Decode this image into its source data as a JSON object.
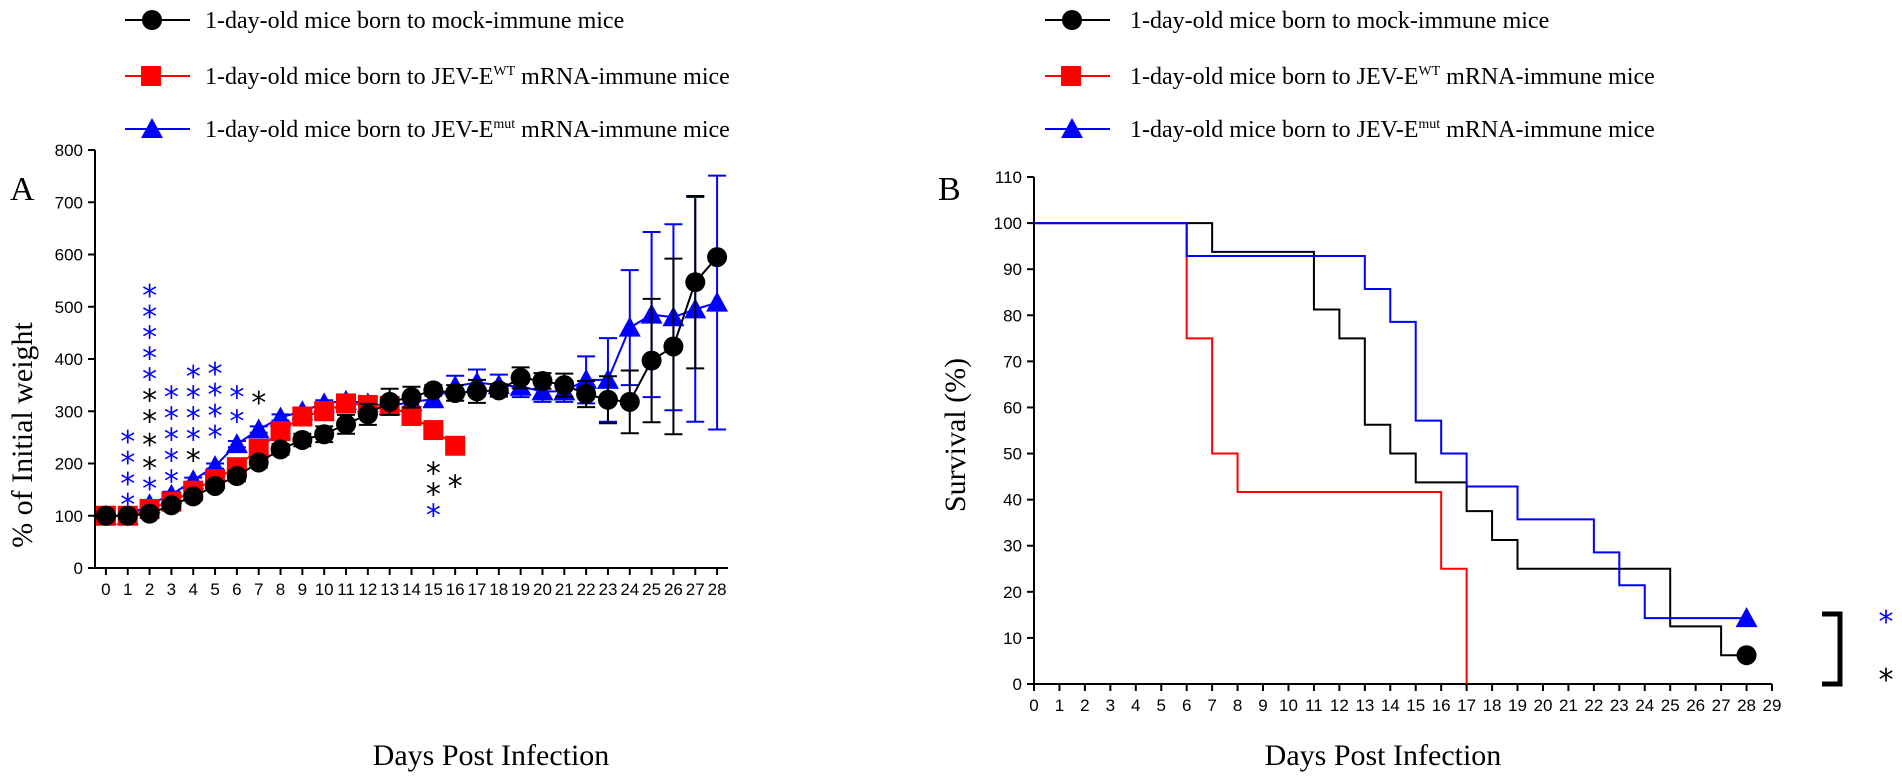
{
  "legend": {
    "mock": "1-day-old mice born to mock-immune mice",
    "wt_pre": "1-day-old mice born to JEV-E",
    "wt_sup": "WT",
    "wt_post": " mRNA-immune mice",
    "mut_pre": "1-day-old mice born to JEV-E",
    "mut_sup": "mut",
    "mut_post": " mRNA-immune mice"
  },
  "colors": {
    "mock": "#000000",
    "wt": "#ff0000",
    "mut": "#0000ff"
  },
  "chart_data": [
    {
      "panel": "A",
      "type": "line",
      "xlabel": "Days Post Infection",
      "ylabel": "% of Initial weight",
      "xlim": [
        -0.5,
        28.5
      ],
      "ylim": [
        0,
        800
      ],
      "xticks": [
        0,
        1,
        2,
        3,
        4,
        5,
        6,
        7,
        8,
        9,
        10,
        11,
        12,
        13,
        14,
        15,
        16,
        17,
        18,
        19,
        20,
        21,
        22,
        23,
        24,
        25,
        26,
        27,
        28
      ],
      "yticks": [
        0,
        100,
        200,
        300,
        400,
        500,
        600,
        700,
        800
      ],
      "series": [
        {
          "name": "mock",
          "marker": "circle",
          "x": [
            0,
            1,
            2,
            3,
            4,
            5,
            6,
            7,
            8,
            9,
            10,
            11,
            12,
            13,
            14,
            15,
            16,
            17,
            18,
            19,
            20,
            21,
            22,
            23,
            24,
            25,
            26,
            27,
            28
          ],
          "y": [
            100,
            100,
            104,
            120,
            137,
            157,
            176,
            202,
            227,
            245,
            256,
            275,
            294,
            318,
            327,
            340,
            335,
            338,
            340,
            364,
            358,
            350,
            333,
            322,
            318,
            397,
            424,
            547,
            595
          ],
          "err": [
            0,
            5,
            8,
            8,
            8,
            8,
            10,
            10,
            10,
            12,
            15,
            18,
            20,
            25,
            20,
            10,
            15,
            22,
            12,
            20,
            15,
            22,
            25,
            45,
            60,
            118,
            168,
            165,
            0
          ]
        },
        {
          "name": "wt",
          "marker": "square",
          "x": [
            0,
            1,
            2,
            3,
            4,
            5,
            6,
            7,
            8,
            9,
            10,
            11,
            12,
            13,
            14,
            15,
            16
          ],
          "y": [
            100,
            100,
            113,
            127,
            148,
            170,
            193,
            228,
            262,
            290,
            300,
            315,
            312,
            310,
            291,
            264,
            234
          ],
          "err": [
            0,
            3,
            4,
            5,
            5,
            5,
            5,
            5,
            5,
            5,
            5,
            5,
            5,
            5,
            5,
            5,
            5
          ]
        },
        {
          "name": "mut",
          "marker": "triangle",
          "x": [
            0,
            1,
            2,
            3,
            4,
            5,
            6,
            7,
            8,
            9,
            10,
            11,
            12,
            13,
            14,
            15,
            16,
            17,
            18,
            19,
            20,
            21,
            22,
            23,
            24,
            25,
            26,
            27,
            28
          ],
          "y": [
            100,
            100,
            122,
            140,
            168,
            195,
            237,
            265,
            288,
            300,
            315,
            320,
            315,
            310,
            318,
            323,
            348,
            355,
            350,
            347,
            338,
            338,
            360,
            360,
            460,
            485,
            480,
            495,
            508
          ],
          "err": [
            0,
            3,
            5,
            6,
            5,
            5,
            6,
            6,
            6,
            6,
            6,
            6,
            6,
            6,
            10,
            10,
            20,
            25,
            20,
            20,
            20,
            20,
            45,
            80,
            110,
            158,
            178,
            215,
            243
          ]
        }
      ],
      "annotations": [
        {
          "x": 1,
          "y": 260,
          "text": "*",
          "color": "blue"
        },
        {
          "x": 1,
          "y": 220,
          "text": "*",
          "color": "blue"
        },
        {
          "x": 1,
          "y": 180,
          "text": "*",
          "color": "blue"
        },
        {
          "x": 1,
          "y": 140,
          "text": "*",
          "color": "blue"
        },
        {
          "x": 2,
          "y": 540,
          "text": "*",
          "color": "blue"
        },
        {
          "x": 2,
          "y": 500,
          "text": "*",
          "color": "blue"
        },
        {
          "x": 2,
          "y": 460,
          "text": "*",
          "color": "blue"
        },
        {
          "x": 2,
          "y": 420,
          "text": "*",
          "color": "blue"
        },
        {
          "x": 2,
          "y": 380,
          "text": "*",
          "color": "blue"
        },
        {
          "x": 2,
          "y": 340,
          "text": "*",
          "color": "black"
        },
        {
          "x": 2,
          "y": 300,
          "text": "*",
          "color": "black"
        },
        {
          "x": 2,
          "y": 255,
          "text": "*",
          "color": "black"
        },
        {
          "x": 2,
          "y": 210,
          "text": "*",
          "color": "black"
        },
        {
          "x": 2,
          "y": 170,
          "text": "*",
          "color": "blue"
        },
        {
          "x": 3,
          "y": 345,
          "text": "*",
          "color": "blue"
        },
        {
          "x": 3,
          "y": 305,
          "text": "*",
          "color": "blue"
        },
        {
          "x": 3,
          "y": 265,
          "text": "*",
          "color": "blue"
        },
        {
          "x": 3,
          "y": 225,
          "text": "*",
          "color": "blue"
        },
        {
          "x": 3,
          "y": 185,
          "text": "*",
          "color": "blue"
        },
        {
          "x": 4,
          "y": 385,
          "text": "*",
          "color": "blue"
        },
        {
          "x": 4,
          "y": 345,
          "text": "*",
          "color": "blue"
        },
        {
          "x": 4,
          "y": 305,
          "text": "*",
          "color": "blue"
        },
        {
          "x": 4,
          "y": 265,
          "text": "*",
          "color": "blue"
        },
        {
          "x": 4,
          "y": 225,
          "text": "*",
          "color": "black"
        },
        {
          "x": 5,
          "y": 390,
          "text": "*",
          "color": "blue"
        },
        {
          "x": 5,
          "y": 350,
          "text": "*",
          "color": "blue"
        },
        {
          "x": 5,
          "y": 310,
          "text": "*",
          "color": "blue"
        },
        {
          "x": 5,
          "y": 270,
          "text": "*",
          "color": "blue"
        },
        {
          "x": 6,
          "y": 345,
          "text": "*",
          "color": "blue"
        },
        {
          "x": 6,
          "y": 300,
          "text": "*",
          "color": "blue"
        },
        {
          "x": 7,
          "y": 335,
          "text": "*",
          "color": "black"
        },
        {
          "x": 15,
          "y": 200,
          "text": "*",
          "color": "black"
        },
        {
          "x": 15,
          "y": 160,
          "text": "*",
          "color": "black"
        },
        {
          "x": 15,
          "y": 120,
          "text": "*",
          "color": "blue"
        },
        {
          "x": 16,
          "y": 175,
          "text": "*",
          "color": "black"
        }
      ]
    },
    {
      "panel": "B",
      "type": "line",
      "subtype": "step",
      "xlabel": "Days Post Infection",
      "ylabel": "Survival (%)",
      "xlim": [
        0,
        29
      ],
      "ylim": [
        0,
        110
      ],
      "xticks": [
        0,
        1,
        2,
        3,
        4,
        5,
        6,
        7,
        8,
        9,
        10,
        11,
        12,
        13,
        14,
        15,
        16,
        17,
        18,
        19,
        20,
        21,
        22,
        23,
        24,
        25,
        26,
        27,
        28,
        29
      ],
      "yticks": [
        0,
        10,
        20,
        30,
        40,
        50,
        60,
        70,
        80,
        90,
        100,
        110
      ],
      "series": [
        {
          "name": "mock",
          "x": [
            0,
            7,
            11,
            12,
            13,
            14,
            15,
            17,
            18,
            19,
            25,
            27,
            28
          ],
          "y": [
            100,
            93.75,
            81.25,
            75,
            56.25,
            50,
            43.75,
            37.5,
            31.25,
            25,
            12.5,
            6.25,
            6.25
          ],
          "end_marker": "circle"
        },
        {
          "name": "wt",
          "x": [
            0,
            6,
            7,
            8,
            16,
            17
          ],
          "y": [
            100,
            75,
            50,
            41.67,
            25,
            0
          ]
        },
        {
          "name": "mut",
          "x": [
            0,
            6,
            13,
            14,
            15,
            16,
            17,
            19,
            22,
            23,
            24,
            28
          ],
          "y": [
            100,
            92.86,
            85.71,
            78.57,
            57.14,
            50,
            42.86,
            35.71,
            28.57,
            21.43,
            14.29,
            14.29
          ],
          "end_marker": "triangle"
        }
      ],
      "significance": [
        {
          "text": "*",
          "color": "blue"
        },
        {
          "text": "*",
          "color": "black"
        }
      ]
    }
  ]
}
